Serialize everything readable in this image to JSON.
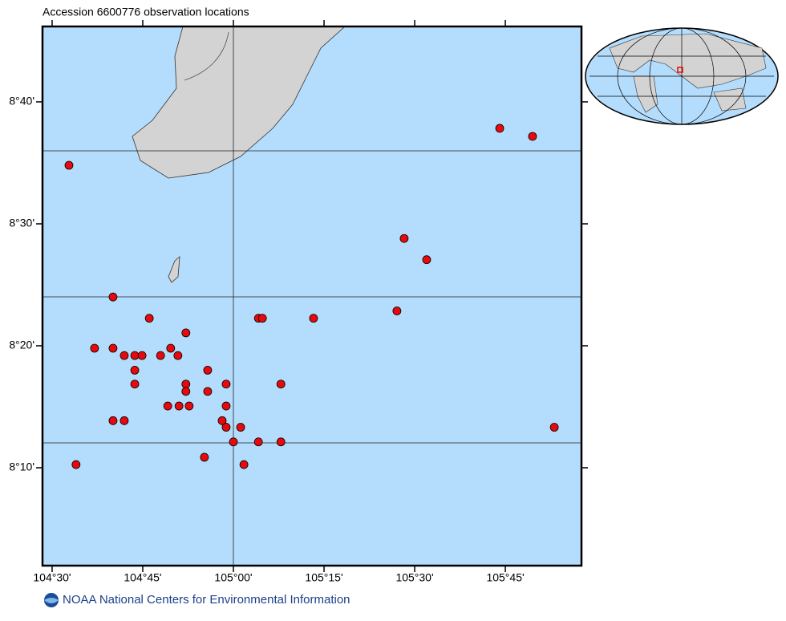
{
  "chart_data": {
    "type": "scatter",
    "title": "Accession 6600776 observation locations",
    "x": [
      104.5465,
      105.7345,
      105.825,
      105.471,
      105.533,
      104.668,
      105.451,
      104.768,
      105.069,
      105.08,
      105.221,
      104.869,
      104.617,
      104.668,
      104.827,
      104.699,
      104.728,
      104.748,
      104.799,
      104.847,
      104.728,
      104.929,
      104.728,
      104.869,
      104.98,
      105.131,
      104.869,
      104.929,
      104.819,
      104.85,
      104.878,
      104.98,
      104.668,
      104.699,
      104.969,
      104.98,
      105.02,
      105.885,
      105.0,
      105.069,
      105.131,
      104.92,
      105.029,
      104.566
    ],
    "values": [
      8.58,
      8.6305,
      8.6195,
      8.48,
      8.451,
      8.4,
      8.381,
      8.371,
      8.371,
      8.371,
      8.371,
      8.351,
      8.33,
      8.33,
      8.33,
      8.32,
      8.32,
      8.32,
      8.32,
      8.32,
      8.3,
      8.3,
      8.281,
      8.281,
      8.281,
      8.281,
      8.271,
      8.271,
      8.251,
      8.251,
      8.251,
      8.251,
      8.231,
      8.231,
      8.231,
      8.222,
      8.222,
      8.222,
      8.202,
      8.202,
      8.202,
      8.181,
      8.171,
      8.171
    ],
    "color": "#e8090d",
    "xlim": [
      104.4735,
      105.96
    ],
    "ylim": [
      8.0329,
      8.7697
    ],
    "xticks": [
      {
        "value": 104.5,
        "label": "104°30'"
      },
      {
        "value": 104.75,
        "label": "104°45'"
      },
      {
        "value": 105.0,
        "label": "105°00'"
      },
      {
        "value": 105.25,
        "label": "105°15'"
      },
      {
        "value": 105.5,
        "label": "105°30'"
      },
      {
        "value": 105.75,
        "label": "105°45'"
      }
    ],
    "yticks": [
      {
        "value": 8.16667,
        "label": "8°10'"
      },
      {
        "value": 8.33333,
        "label": "8°20'"
      },
      {
        "value": 8.5,
        "label": "8°30'"
      },
      {
        "value": 8.66667,
        "label": "8°40'"
      }
    ],
    "footer": "NOAA National Centers for Environmental Information"
  }
}
